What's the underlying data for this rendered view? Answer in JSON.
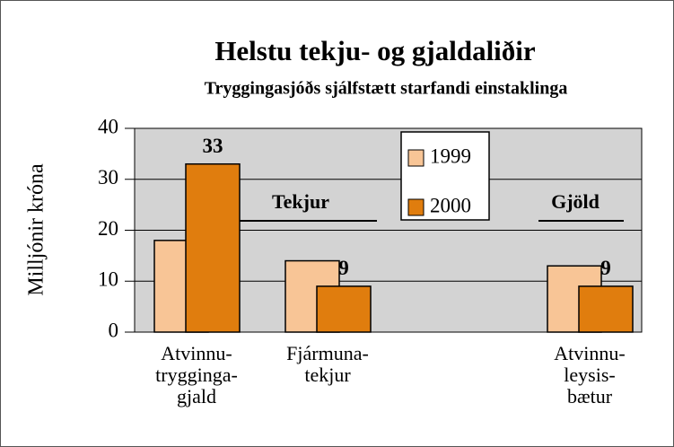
{
  "chart_data": {
    "type": "bar",
    "title": "Helstu tekju- og gjaldaliðir",
    "subtitle": "Tryggingasjóðs sjálfstætt starfandi einstaklinga",
    "y_label": "Milljónir króna",
    "categories": [
      "Atvinnu-\ntrygginga-\ngjald",
      "Fjármuna-\ntekjur",
      null,
      "Atvinnu-\nleysis-\nbætur"
    ],
    "series": [
      {
        "name": "1999",
        "color": "#f8c596",
        "values": [
          18,
          14,
          null,
          13
        ]
      },
      {
        "name": "2000",
        "color": "#e07d0e",
        "values": [
          33,
          9,
          null,
          9
        ],
        "value_labels": [
          "33",
          "9",
          null,
          "9"
        ]
      }
    ],
    "annotations": [
      "Tekjur",
      "Gjöld"
    ],
    "ylim": [
      0,
      40
    ],
    "yticks": [
      0,
      10,
      20,
      30,
      40
    ],
    "grid": true,
    "legend": "top"
  }
}
